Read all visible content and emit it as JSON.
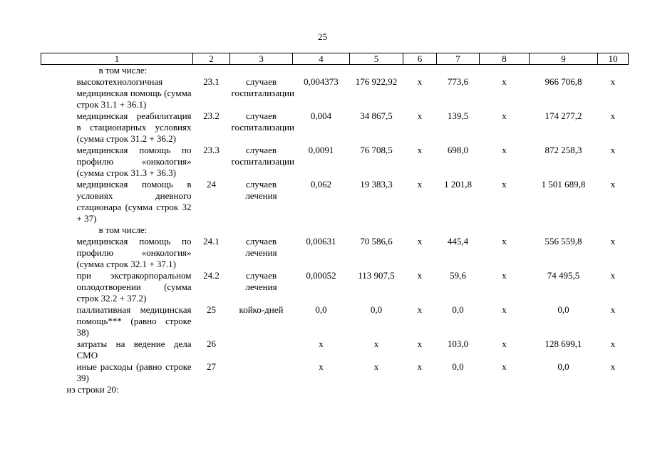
{
  "page": {
    "number": "25"
  },
  "table": {
    "column_numbers": [
      "1",
      "2",
      "3",
      "4",
      "5",
      "6",
      "7",
      "8",
      "9",
      "10"
    ],
    "rows": [
      {
        "type": "sublabel",
        "name": "в том числе:"
      },
      {
        "type": "data",
        "name": "высокотехнологичная медицинская помощь (сумма строк 31.1 + 36.1)",
        "row_no": "23.1",
        "unit": "случаев госпитализации",
        "values": [
          "0,004373",
          "176 922,92",
          "х",
          "773,6",
          "х",
          "966 706,8",
          "х"
        ]
      },
      {
        "type": "data",
        "name": "медицинская реабилитация в стационарных условиях (сумма строк 31.2 + 36.2)",
        "row_no": "23.2",
        "unit": "случаев госпитализации",
        "values": [
          "0,004",
          "34 867,5",
          "х",
          "139,5",
          "х",
          "174 277,2",
          "х"
        ]
      },
      {
        "type": "data",
        "name": "медицинская помощь по профилю «онкология» (сумма строк 31.3 + 36.3)",
        "row_no": "23.3",
        "unit": "случаев госпитализации",
        "values": [
          "0,0091",
          "76 708,5",
          "х",
          "698,0",
          "х",
          "872 258,3",
          "х"
        ]
      },
      {
        "type": "data",
        "name": "медицинская помощь в условиях дневного стационара (сумма строк 32 + 37)",
        "row_no": "24",
        "unit": "случаев лечения",
        "values": [
          "0,062",
          "19 383,3",
          "х",
          "1 201,8",
          "х",
          "1 501 689,8",
          "х"
        ]
      },
      {
        "type": "sublabel",
        "name": "в том числе:"
      },
      {
        "type": "data",
        "name": "медицинская помощь по профилю «онкология» (сумма строк 32.1 + 37.1)",
        "row_no": "24.1",
        "unit": "случаев лечения",
        "values": [
          "0,00631",
          "70 586,6",
          "х",
          "445,4",
          "х",
          "556 559,8",
          "х"
        ]
      },
      {
        "type": "data",
        "name": "при экстракорпоральном оплодотворении (сумма строк 32.2 + 37.2)",
        "row_no": "24.2",
        "unit": "случаев лечения",
        "values": [
          "0,00052",
          "113 907,5",
          "х",
          "59,6",
          "х",
          "74 495,5",
          "х"
        ]
      },
      {
        "type": "data",
        "name": "паллиативная медицинская помощь*** (равно строке 38)",
        "row_no": "25",
        "unit": "койко-дней",
        "values": [
          "0,0",
          "0,0",
          "х",
          "0,0",
          "х",
          "0,0",
          "х"
        ]
      },
      {
        "type": "data",
        "name": "затраты на ведение дела СМО",
        "row_no": "26",
        "unit": "",
        "values": [
          "х",
          "х",
          "х",
          "103,0",
          "х",
          "128 699,1",
          "х"
        ]
      },
      {
        "type": "data",
        "name": "иные расходы (равно строке 39)",
        "row_no": "27",
        "unit": "",
        "values": [
          "х",
          "х",
          "х",
          "0,0",
          "х",
          "0,0",
          "х"
        ]
      },
      {
        "type": "section",
        "name": "из строки 20:"
      }
    ]
  }
}
